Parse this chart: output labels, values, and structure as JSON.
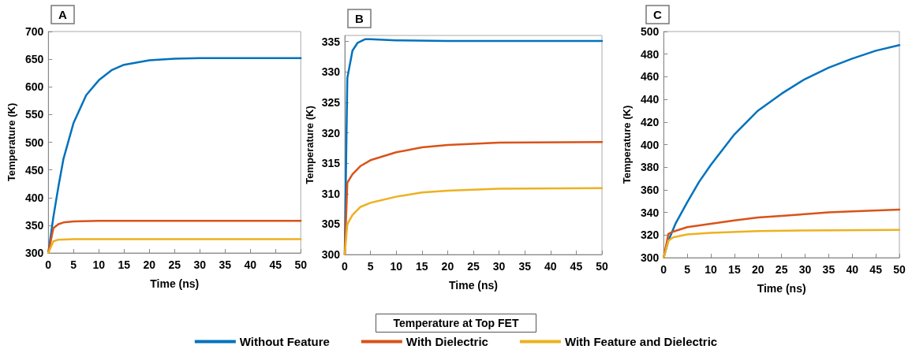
{
  "chart_data": [
    {
      "type": "line",
      "title": "A",
      "xlabel": "Time (ns)",
      "ylabel": "Temperature (K)",
      "xlim": [
        0,
        50
      ],
      "xticks": [
        0,
        5,
        10,
        15,
        20,
        25,
        30,
        35,
        40,
        45,
        50
      ],
      "ylim": [
        300,
        700
      ],
      "yticks": [
        300,
        350,
        400,
        450,
        500,
        550,
        600,
        650,
        700
      ],
      "grid": false,
      "legend": false,
      "marker": "none",
      "series": [
        {
          "color": "#0072bd",
          "x": [
            0,
            1,
            2,
            3,
            5,
            7.5,
            10,
            12.5,
            15,
            20,
            25,
            30,
            50
          ],
          "values": [
            300,
            365,
            420,
            470,
            535,
            585,
            612,
            630,
            640,
            648,
            651,
            652,
            652
          ]
        },
        {
          "color": "#d95319",
          "x": [
            0,
            1,
            2,
            3,
            5,
            10,
            50
          ],
          "values": [
            300,
            345,
            352,
            355,
            357,
            358,
            358
          ]
        },
        {
          "color": "#edb120",
          "x": [
            0,
            1,
            2,
            5,
            50
          ],
          "values": [
            300,
            321,
            324,
            325,
            325
          ]
        }
      ]
    },
    {
      "type": "line",
      "title": "B",
      "xlabel": "Time (ns)",
      "ylabel": "Temperature (K)",
      "xlim": [
        0,
        50
      ],
      "xticks": [
        0,
        5,
        10,
        15,
        20,
        25,
        30,
        35,
        40,
        45,
        50
      ],
      "ylim": [
        300,
        336
      ],
      "yticks": [
        300,
        305,
        310,
        315,
        320,
        325,
        330,
        335
      ],
      "grid": false,
      "legend": "bottom",
      "legend_title": "Temperature at Top FET",
      "marker": "none",
      "series": [
        {
          "name": "Without Feature",
          "color": "#0072bd",
          "x": [
            0,
            0.5,
            1.5,
            2.5,
            4,
            5,
            10,
            20,
            50
          ],
          "values": [
            300,
            329,
            333.5,
            334.8,
            335.4,
            335.4,
            335.2,
            335.1,
            335.1
          ]
        },
        {
          "name": "With Dielectric",
          "color": "#d95319",
          "x": [
            0,
            0.5,
            1.5,
            3,
            5,
            10,
            15,
            20,
            30,
            50
          ],
          "values": [
            300,
            311.8,
            313.2,
            314.5,
            315.5,
            316.8,
            317.6,
            318,
            318.4,
            318.5
          ]
        },
        {
          "name": "With Feature and Dielectric",
          "color": "#edb120",
          "x": [
            0,
            0.5,
            1.5,
            3,
            5,
            10,
            15,
            20,
            30,
            50
          ],
          "values": [
            300,
            305,
            306.5,
            307.8,
            308.5,
            309.5,
            310.2,
            310.5,
            310.8,
            310.9
          ]
        }
      ]
    },
    {
      "type": "line",
      "title": "C",
      "xlabel": "Time (ns)",
      "ylabel": "Temperature (K)",
      "xlim": [
        0,
        50
      ],
      "xticks": [
        0,
        5,
        10,
        15,
        20,
        25,
        30,
        35,
        40,
        45,
        50
      ],
      "ylim": [
        300,
        500
      ],
      "yticks": [
        300,
        320,
        340,
        360,
        380,
        400,
        420,
        440,
        460,
        480,
        500
      ],
      "grid": false,
      "legend": false,
      "marker": "none",
      "series": [
        {
          "color": "#0072bd",
          "x": [
            0,
            1,
            2.5,
            5,
            7.5,
            10,
            15,
            20,
            25,
            30,
            35,
            40,
            45,
            50
          ],
          "values": [
            300,
            315,
            330,
            349,
            367,
            382,
            409,
            430,
            445,
            458,
            468,
            476,
            483,
            488
          ]
        },
        {
          "color": "#d95319",
          "x": [
            0,
            1,
            2,
            5,
            10,
            15,
            20,
            25,
            30,
            35,
            40,
            50
          ],
          "values": [
            300,
            321,
            323,
            327,
            330,
            333,
            335.5,
            337,
            338.5,
            340,
            341,
            342.5
          ]
        },
        {
          "color": "#edb120",
          "x": [
            0,
            1,
            2,
            5,
            10,
            20,
            30,
            50
          ],
          "values": [
            300,
            315,
            318,
            320.5,
            322,
            323.5,
            324,
            324.5
          ]
        }
      ]
    }
  ]
}
